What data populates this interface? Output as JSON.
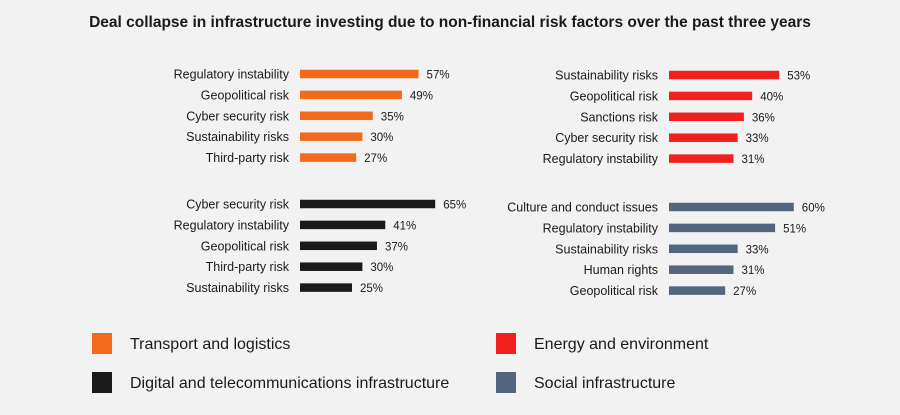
{
  "title": "Deal collapse in infrastructure investing due to non-financial risk factors over the past three years",
  "legend": [
    {
      "name": "Transport and logistics",
      "color": "#f26b1d"
    },
    {
      "name": "Energy and environment",
      "color": "#f0201f"
    },
    {
      "name": "Digital and telecommunications infrastructure",
      "color": "#1a1a1a"
    },
    {
      "name": "Social infrastructure",
      "color": "#53657f"
    }
  ],
  "chart_data": [
    {
      "type": "bar",
      "orientation": "horizontal",
      "series_name": "Transport and logistics",
      "color": "#f26b1d",
      "categories": [
        "Regulatory instability",
        "Geopolitical risk",
        "Cyber security risk",
        "Sustainability risks",
        "Third-party risk"
      ],
      "values": [
        57,
        49,
        35,
        30,
        27
      ],
      "value_suffix": "%"
    },
    {
      "type": "bar",
      "orientation": "horizontal",
      "series_name": "Energy and environment",
      "color": "#f0201f",
      "categories": [
        "Sustainability risks",
        "Geopolitical risk",
        "Sanctions risk",
        "Cyber security risk",
        "Regulatory instability"
      ],
      "values": [
        53,
        40,
        36,
        33,
        31
      ],
      "value_suffix": "%"
    },
    {
      "type": "bar",
      "orientation": "horizontal",
      "series_name": "Digital and telecommunications infrastructure",
      "color": "#1a1a1a",
      "categories": [
        "Cyber security risk",
        "Regulatory instability",
        "Geopolitical risk",
        "Third-party risk",
        "Sustainability risks"
      ],
      "values": [
        65,
        41,
        37,
        30,
        25
      ],
      "value_suffix": "%"
    },
    {
      "type": "bar",
      "orientation": "horizontal",
      "series_name": "Social infrastructure",
      "color": "#53657f",
      "categories": [
        "Culture and conduct issues",
        "Regulatory instability",
        "Sustainability risks",
        "Human rights",
        "Geopolitical risk"
      ],
      "values": [
        60,
        51,
        33,
        31,
        27
      ],
      "value_suffix": "%"
    }
  ]
}
